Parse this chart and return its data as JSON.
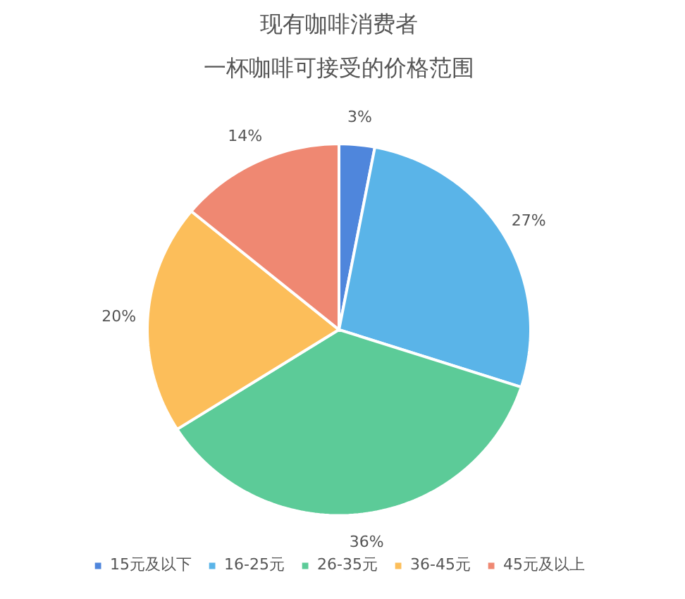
{
  "chart_data": {
    "type": "pie",
    "title": "现有咖啡消费者",
    "subtitle": "一杯咖啡可接受的价格范围",
    "categories": [
      "15元及以下",
      "16-25元",
      "26-35元",
      "36-45元",
      "45元及以上"
    ],
    "values": [
      3,
      27,
      36,
      20,
      14
    ],
    "colors": [
      "#4f86dc",
      "#5ab4e8",
      "#5ccb98",
      "#fcbe5a",
      "#ef8872"
    ],
    "value_labels": [
      "3%",
      "27%",
      "36%",
      "20%",
      "14%"
    ],
    "legend": "bottom"
  }
}
